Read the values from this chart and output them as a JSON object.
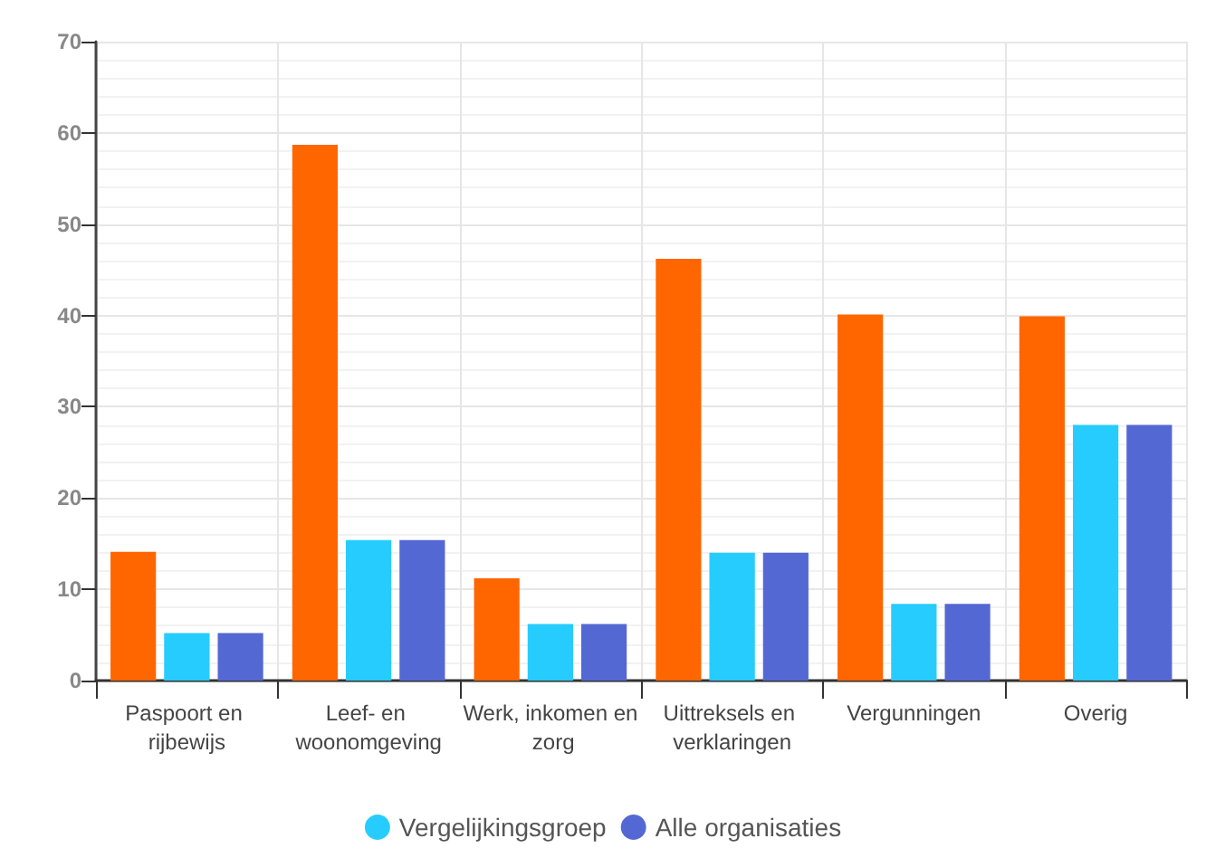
{
  "chart_data": {
    "type": "bar",
    "categories": [
      "Paspoort en rijbewijs",
      "Leef- en woonomgeving",
      "Werk, inkomen en zorg",
      "Uittreksels en verklaringen",
      "Vergunningen",
      "Overig"
    ],
    "series": [
      {
        "color": "#ff6600",
        "values": [
          14.1,
          58.7,
          11.2,
          46.2,
          40.1,
          39.9
        ]
      },
      {
        "name": "Vergelijkingsgroep",
        "color": "#27ccfe",
        "values": [
          5.2,
          15.4,
          6.2,
          14,
          8.4,
          28
        ]
      },
      {
        "name": "Alle organisaties",
        "color": "#5468d4",
        "values": [
          5.2,
          15.4,
          6.2,
          14,
          8.4,
          28
        ]
      }
    ],
    "ylim": [
      0,
      70
    ],
    "yticks": [
      0,
      10,
      20,
      30,
      40,
      50,
      60,
      70
    ],
    "grid": true,
    "legend": "bottom"
  }
}
